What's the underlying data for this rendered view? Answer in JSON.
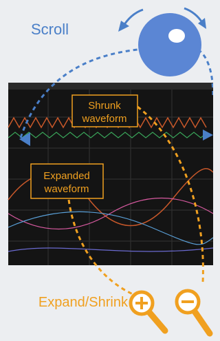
{
  "labels": {
    "scroll": "Scroll",
    "shrunk": [
      "Shrunk",
      "waveform"
    ],
    "expanded": [
      "Expanded",
      "waveform"
    ],
    "expand_shrink": "Expand/Shrink"
  }
}
